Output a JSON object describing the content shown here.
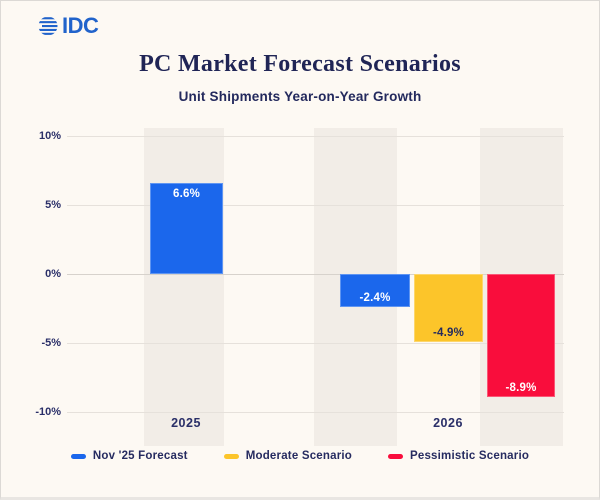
{
  "logo": {
    "text": "IDC",
    "icon": "globe-stripes-icon",
    "color": "#2163cb"
  },
  "header": {
    "title": "PC Market Forecast Scenarios",
    "subtitle": "Unit Shipments Year-on-Year Growth"
  },
  "chart_data": {
    "type": "bar",
    "title": "PC Market Forecast Scenarios",
    "subtitle": "Unit Shipments Year-on-Year Growth",
    "categories": [
      "2025",
      "2026"
    ],
    "series": [
      {
        "name": "Nov '25 Forecast",
        "color": "#1b67ec",
        "label_color": "#ffffff",
        "values": [
          6.6,
          -2.4
        ],
        "labels": [
          "6.6%",
          "-2.4%"
        ]
      },
      {
        "name": "Moderate Scenario",
        "color": "#fcc52a",
        "label_color": "#222a5e",
        "values": [
          null,
          -4.9
        ],
        "labels": [
          null,
          "-4.9%"
        ]
      },
      {
        "name": "Pessimistic Scenario",
        "color": "#f90d3c",
        "label_color": "#ffffff",
        "values": [
          null,
          -8.9
        ],
        "labels": [
          null,
          "-8.9%"
        ]
      }
    ],
    "xlabel": "",
    "ylabel": "",
    "ylim": [
      -10,
      10
    ],
    "yticks": [
      {
        "value": 10,
        "label": "10%"
      },
      {
        "value": 5,
        "label": "5%"
      },
      {
        "value": 0,
        "label": "0%"
      },
      {
        "value": -5,
        "label": "-5%"
      },
      {
        "value": -10,
        "label": "-10%"
      }
    ],
    "grid": true,
    "legend_position": "bottom",
    "colors": {
      "background": "#fdf9f3",
      "band": "#f2ede7",
      "gridline": "#e6e1db",
      "zero_line": "#d7d2cc",
      "axis_text": "#2a2f68"
    }
  }
}
